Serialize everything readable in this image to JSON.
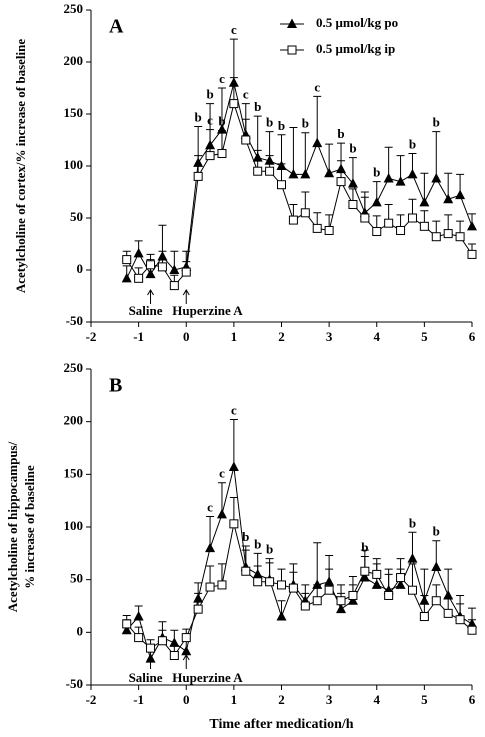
{
  "chart_data": [
    {
      "type": "line",
      "panel_label": "A",
      "ylabel": [
        "Acetylcholine of cortex/% increase of baseline"
      ],
      "x": [
        -1.25,
        -1,
        -0.75,
        -0.5,
        -0.25,
        0,
        0.25,
        0.5,
        0.75,
        1,
        1.25,
        1.5,
        1.75,
        2,
        2.25,
        2.5,
        2.75,
        3,
        3.25,
        3.5,
        3.75,
        4,
        4.25,
        4.5,
        4.75,
        5,
        5.25,
        5.5,
        5.75,
        6
      ],
      "xlim": [
        -2,
        6
      ],
      "xticks": [
        -2,
        -1,
        0,
        1,
        2,
        3,
        4,
        5,
        6
      ],
      "ylim": [
        -50,
        250
      ],
      "yticks": [
        -50,
        0,
        50,
        100,
        150,
        200,
        250
      ],
      "legend": "upper right",
      "series": [
        {
          "name": "0.5 μmol/kg po",
          "marker": "triangle",
          "color": "#000000",
          "values": [
            -8,
            16,
            -4,
            13,
            0,
            3,
            103,
            120,
            135,
            180,
            130,
            108,
            105,
            100,
            92,
            92,
            122,
            93,
            97,
            83,
            55,
            65,
            88,
            85,
            92,
            65,
            88,
            68,
            72,
            42
          ],
          "errors": [
            12,
            12,
            14,
            30,
            18,
            15,
            35,
            40,
            40,
            42,
            30,
            40,
            28,
            30,
            45,
            40,
            45,
            28,
            25,
            25,
            20,
            20,
            30,
            25,
            20,
            28,
            45,
            25,
            20,
            12
          ],
          "significance": [
            null,
            null,
            null,
            null,
            null,
            null,
            "b",
            "b",
            "c",
            "c",
            "c",
            "b",
            "b",
            "b",
            null,
            "b",
            "c",
            null,
            "b",
            "b",
            null,
            "b",
            null,
            null,
            "b",
            null,
            "b",
            null,
            null,
            null
          ]
        },
        {
          "name": "0.5 μmol/kg ip",
          "marker": "square",
          "color": "#000000",
          "values": [
            10,
            -8,
            5,
            3,
            -15,
            -2,
            90,
            110,
            112,
            160,
            125,
            95,
            95,
            82,
            48,
            55,
            40,
            38,
            85,
            63,
            50,
            37,
            45,
            38,
            50,
            42,
            32,
            35,
            32,
            15
          ],
          "errors": [
            8,
            10,
            10,
            15,
            10,
            10,
            20,
            25,
            22,
            25,
            20,
            20,
            15,
            20,
            15,
            20,
            15,
            15,
            20,
            15,
            20,
            15,
            18,
            15,
            18,
            15,
            15,
            18,
            15,
            10
          ],
          "significance": [
            null,
            null,
            null,
            null,
            null,
            null,
            null,
            "c",
            "b",
            null,
            null,
            null,
            null,
            null,
            null,
            null,
            null,
            null,
            null,
            null,
            null,
            null,
            null,
            null,
            null,
            null,
            null,
            null,
            null,
            null
          ]
        }
      ]
    },
    {
      "type": "line",
      "panel_label": "B",
      "ylabel": [
        "Acetylcholine of hippocampus/",
        "% increase of baseline"
      ],
      "xlabel": "Time after medication/h",
      "markers": [
        {
          "x": -0.75,
          "label": "Saline"
        },
        {
          "x": 0,
          "label": "Huperzine A"
        }
      ],
      "x": [
        -1.25,
        -1,
        -0.75,
        -0.5,
        -0.25,
        0,
        0.25,
        0.5,
        0.75,
        1,
        1.25,
        1.5,
        1.75,
        2,
        2.25,
        2.5,
        2.75,
        3,
        3.25,
        3.5,
        3.75,
        4,
        4.25,
        4.5,
        4.75,
        5,
        5.25,
        5.5,
        5.75,
        6
      ],
      "xlim": [
        -2,
        6
      ],
      "xticks": [
        -2,
        -1,
        0,
        1,
        2,
        3,
        4,
        5,
        6
      ],
      "ylim": [
        -50,
        250
      ],
      "yticks": [
        -50,
        0,
        50,
        100,
        150,
        200,
        250
      ],
      "series": [
        {
          "marker": "triangle",
          "color": "#000000",
          "values": [
            2,
            15,
            -25,
            -5,
            -10,
            -18,
            32,
            80,
            112,
            157,
            62,
            55,
            50,
            15,
            45,
            30,
            45,
            48,
            22,
            30,
            52,
            45,
            40,
            45,
            70,
            30,
            62,
            35,
            15,
            8
          ],
          "errors": [
            10,
            10,
            12,
            15,
            12,
            10,
            15,
            30,
            30,
            45,
            20,
            20,
            20,
            15,
            20,
            15,
            40,
            25,
            15,
            15,
            20,
            20,
            20,
            15,
            25,
            30,
            25,
            25,
            20,
            15
          ],
          "significance": [
            null,
            null,
            null,
            null,
            null,
            null,
            null,
            "c",
            "c",
            "c",
            "b",
            "b",
            "b",
            null,
            null,
            null,
            null,
            null,
            null,
            null,
            "b",
            null,
            null,
            null,
            "b",
            null,
            "b",
            null,
            null,
            null
          ]
        },
        {
          "marker": "square",
          "color": "#000000",
          "values": [
            8,
            -5,
            -15,
            -8,
            -22,
            -5,
            22,
            43,
            45,
            103,
            58,
            48,
            48,
            45,
            42,
            25,
            30,
            40,
            30,
            35,
            58,
            55,
            35,
            52,
            40,
            15,
            30,
            18,
            12,
            2
          ],
          "errors": [
            8,
            10,
            8,
            10,
            10,
            8,
            15,
            20,
            20,
            25,
            20,
            15,
            18,
            15,
            15,
            12,
            15,
            20,
            15,
            18,
            20,
            15,
            20,
            18,
            25,
            20,
            15,
            15,
            15,
            10
          ],
          "significance": [
            null,
            null,
            null,
            null,
            null,
            null,
            null,
            null,
            null,
            null,
            null,
            null,
            null,
            null,
            null,
            null,
            null,
            null,
            null,
            null,
            null,
            null,
            null,
            null,
            null,
            null,
            null,
            null,
            null,
            null
          ]
        }
      ]
    }
  ]
}
